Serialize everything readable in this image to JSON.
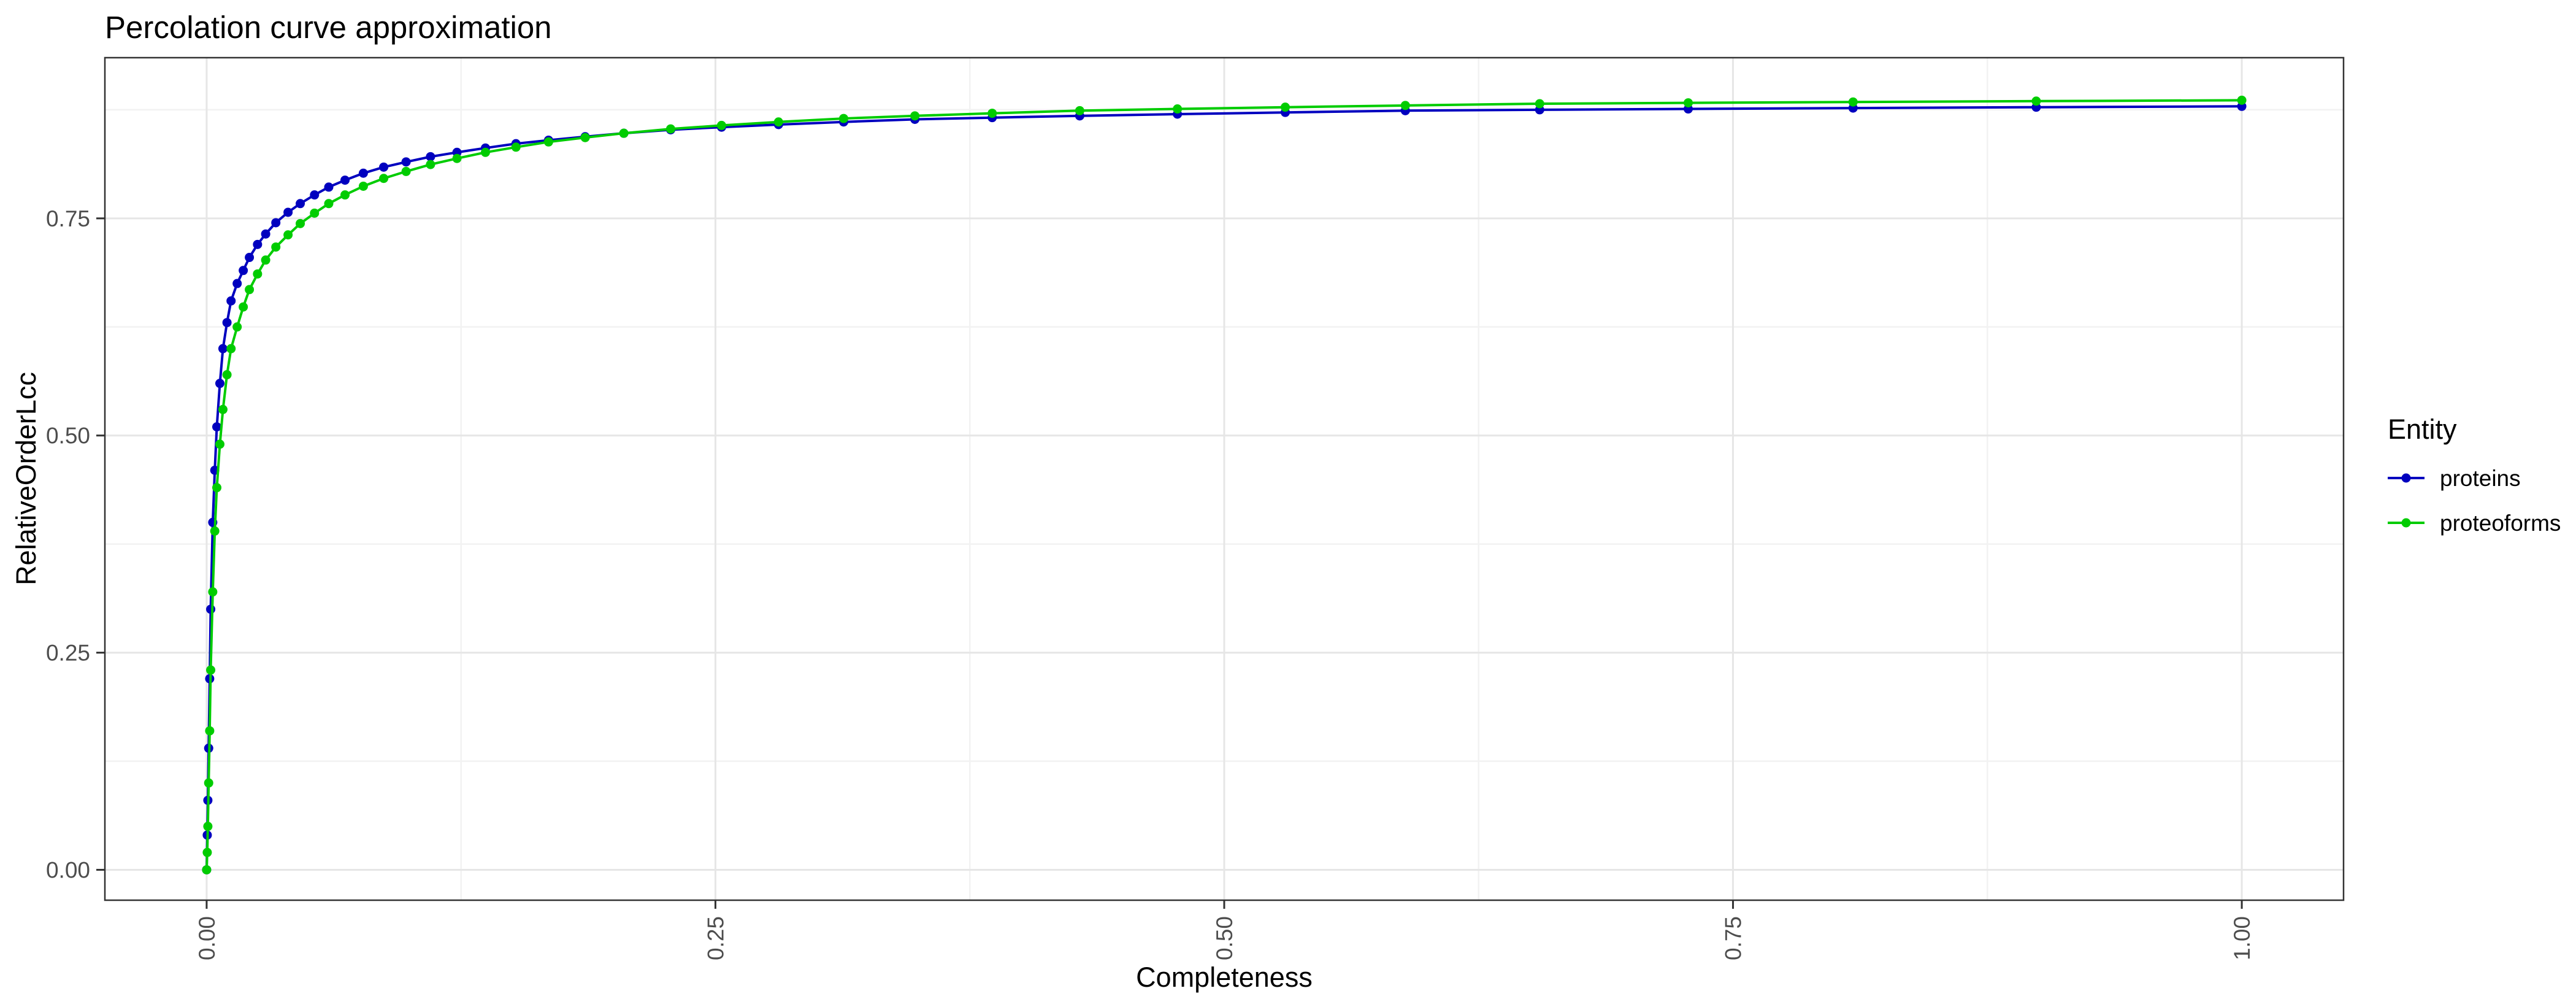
{
  "chart_data": {
    "type": "line",
    "title": "Percolation curve approximation",
    "xlabel": "Completeness",
    "ylabel": "RelativeOrderLcc",
    "xlim": [
      -0.05,
      1.05
    ],
    "ylim": [
      -0.035,
      0.935
    ],
    "x_ticks": [
      0,
      0.25,
      0.5,
      0.75,
      1.0
    ],
    "x_tick_labels": [
      "0.00",
      "0.25",
      "0.50",
      "0.75",
      "1.00"
    ],
    "y_ticks": [
      0,
      0.25,
      0.5,
      0.75
    ],
    "y_tick_labels": [
      "0.00",
      "0.25",
      "0.50",
      "0.75"
    ],
    "grid": true,
    "legend": {
      "title": "Entity",
      "position": "right"
    },
    "series": [
      {
        "name": "proteins",
        "color": "#0000bf",
        "marker": "point-with-fitted-line",
        "x": [
          0.0,
          0.0003,
          0.0006,
          0.001,
          0.0015,
          0.002,
          0.003,
          0.004,
          0.005,
          0.0065,
          0.008,
          0.01,
          0.012,
          0.015,
          0.018,
          0.021,
          0.025,
          0.029,
          0.034,
          0.04,
          0.046,
          0.053,
          0.06,
          0.068,
          0.077,
          0.087,
          0.098,
          0.11,
          0.123,
          0.137,
          0.152,
          0.168,
          0.186,
          0.205,
          0.228,
          0.253,
          0.281,
          0.313,
          0.348,
          0.386,
          0.429,
          0.477,
          0.53,
          0.589,
          0.655,
          0.728,
          0.809,
          0.899,
          1.0
        ],
        "y": [
          0.0,
          0.04,
          0.08,
          0.14,
          0.22,
          0.3,
          0.4,
          0.46,
          0.51,
          0.56,
          0.6,
          0.63,
          0.655,
          0.675,
          0.69,
          0.705,
          0.72,
          0.732,
          0.745,
          0.757,
          0.767,
          0.777,
          0.786,
          0.794,
          0.802,
          0.809,
          0.815,
          0.821,
          0.826,
          0.831,
          0.836,
          0.84,
          0.844,
          0.848,
          0.852,
          0.855,
          0.858,
          0.861,
          0.864,
          0.866,
          0.868,
          0.87,
          0.872,
          0.874,
          0.875,
          0.876,
          0.877,
          0.878,
          0.879
        ]
      },
      {
        "name": "proteoforms",
        "color": "#00cc00",
        "marker": "point-with-fitted-line",
        "x": [
          0.0,
          0.0003,
          0.0006,
          0.001,
          0.0015,
          0.002,
          0.003,
          0.004,
          0.005,
          0.0065,
          0.008,
          0.01,
          0.012,
          0.015,
          0.018,
          0.021,
          0.025,
          0.029,
          0.034,
          0.04,
          0.046,
          0.053,
          0.06,
          0.068,
          0.077,
          0.087,
          0.098,
          0.11,
          0.123,
          0.137,
          0.152,
          0.168,
          0.186,
          0.205,
          0.228,
          0.253,
          0.281,
          0.313,
          0.348,
          0.386,
          0.429,
          0.477,
          0.53,
          0.589,
          0.655,
          0.728,
          0.809,
          0.899,
          1.0
        ],
        "y": [
          0.0,
          0.02,
          0.05,
          0.1,
          0.16,
          0.23,
          0.32,
          0.39,
          0.44,
          0.49,
          0.53,
          0.57,
          0.6,
          0.625,
          0.648,
          0.668,
          0.686,
          0.702,
          0.717,
          0.731,
          0.744,
          0.756,
          0.767,
          0.777,
          0.787,
          0.796,
          0.804,
          0.812,
          0.819,
          0.826,
          0.832,
          0.838,
          0.843,
          0.848,
          0.853,
          0.857,
          0.861,
          0.865,
          0.868,
          0.871,
          0.874,
          0.876,
          0.878,
          0.88,
          0.882,
          0.883,
          0.884,
          0.885,
          0.886
        ]
      }
    ]
  }
}
